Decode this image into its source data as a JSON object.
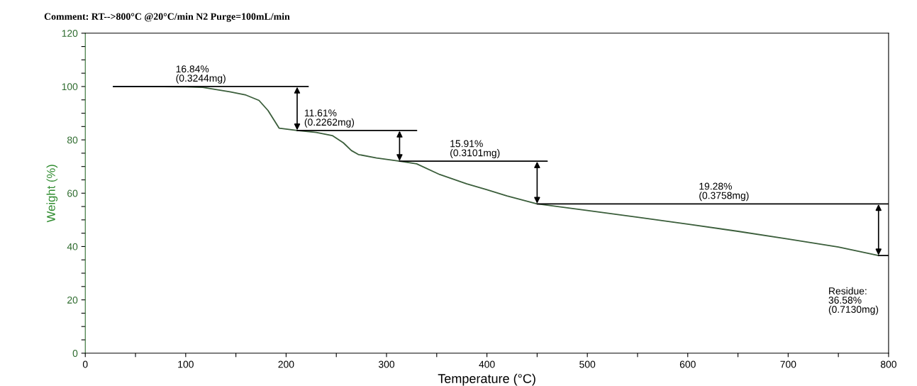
{
  "chart_data": {
    "type": "line",
    "xlabel": "Temperature (°C)",
    "ylabel": "Weight (%)",
    "xlim": [
      0,
      800
    ],
    "ylim": [
      0,
      120
    ],
    "xticks": [
      0,
      {
        "value": 50,
        "label": null
      },
      100,
      {
        "value": 150,
        "label": null
      },
      200,
      {
        "value": 250,
        "label": null
      },
      300,
      {
        "value": 350,
        "label": null
      },
      400,
      {
        "value": 450,
        "label": null
      },
      500,
      {
        "value": 550,
        "label": null
      },
      600,
      {
        "value": 650,
        "label": null
      },
      700,
      {
        "value": 750,
        "label": null
      },
      800
    ],
    "yticks": [
      0,
      {
        "value": 5,
        "label": null
      },
      {
        "value": 10,
        "label": null
      },
      {
        "value": 15,
        "label": null
      },
      20,
      {
        "value": 25,
        "label": null
      },
      {
        "value": 30,
        "label": null
      },
      {
        "value": 35,
        "label": null
      },
      40,
      {
        "value": 45,
        "label": null
      },
      {
        "value": 50,
        "label": null
      },
      {
        "value": 55,
        "label": null
      },
      60,
      {
        "value": 65,
        "label": null
      },
      {
        "value": 70,
        "label": null
      },
      {
        "value": 75,
        "label": null
      },
      80,
      {
        "value": 85,
        "label": null
      },
      {
        "value": 90,
        "label": null
      },
      {
        "value": 95,
        "label": null
      },
      100,
      {
        "value": 105,
        "label": null
      },
      {
        "value": 110,
        "label": null
      },
      {
        "value": 115,
        "label": null
      },
      120
    ],
    "grid": false,
    "legend": false,
    "series": [
      {
        "color": "#3b5e3b",
        "x": [
          28,
          60,
          100,
          117,
          144,
          160,
          173,
          182,
          193,
          211,
          230,
          246,
          257,
          265,
          272,
          290,
          313,
          330,
          353,
          380,
          400,
          420,
          450,
          500,
          550,
          600,
          650,
          700,
          750,
          790
        ],
        "values": [
          100,
          100,
          99.9,
          99.7,
          98,
          96.8,
          94.8,
          91,
          84.4,
          83.5,
          82.8,
          81.6,
          78.9,
          76,
          74.5,
          73.2,
          72,
          71,
          67,
          63.5,
          61.3,
          59,
          56,
          53.5,
          51,
          48.4,
          45.7,
          42.8,
          39.8,
          36.6
        ]
      },
      {
        "color": "#000000",
        "x": [
          28,
          222
        ],
        "values": [
          100,
          100
        ]
      },
      {
        "color": "#000000",
        "x": [
          211,
          330
        ],
        "values": [
          83.5,
          83.5
        ]
      },
      {
        "color": "#000000",
        "x": [
          313,
          460
        ],
        "values": [
          72,
          72
        ]
      },
      {
        "color": "#000000",
        "x": [
          450,
          800
        ],
        "values": [
          56,
          56
        ]
      },
      {
        "color": "#000000",
        "x": [
          790,
          800
        ],
        "values": [
          36.6,
          36.6
        ]
      }
    ],
    "annotations": [
      "Comment: RT-->800°C @20°C/min N2 Purge=100mL/min",
      {
        "text": "16.84%\n(0.3244mg)",
        "x": 90,
        "y": 100
      },
      {
        "text": "11.61%\n(0.2262mg)",
        "x": 218,
        "y": 83.5
      },
      {
        "text": "15.91%\n(0.3101mg)",
        "x": 363,
        "y": 72
      },
      {
        "text": "19.28%\n(0.3758mg)",
        "x": 611,
        "y": 56
      },
      "Residue:\n36.58%\n(0.7130mg)"
    ]
  }
}
